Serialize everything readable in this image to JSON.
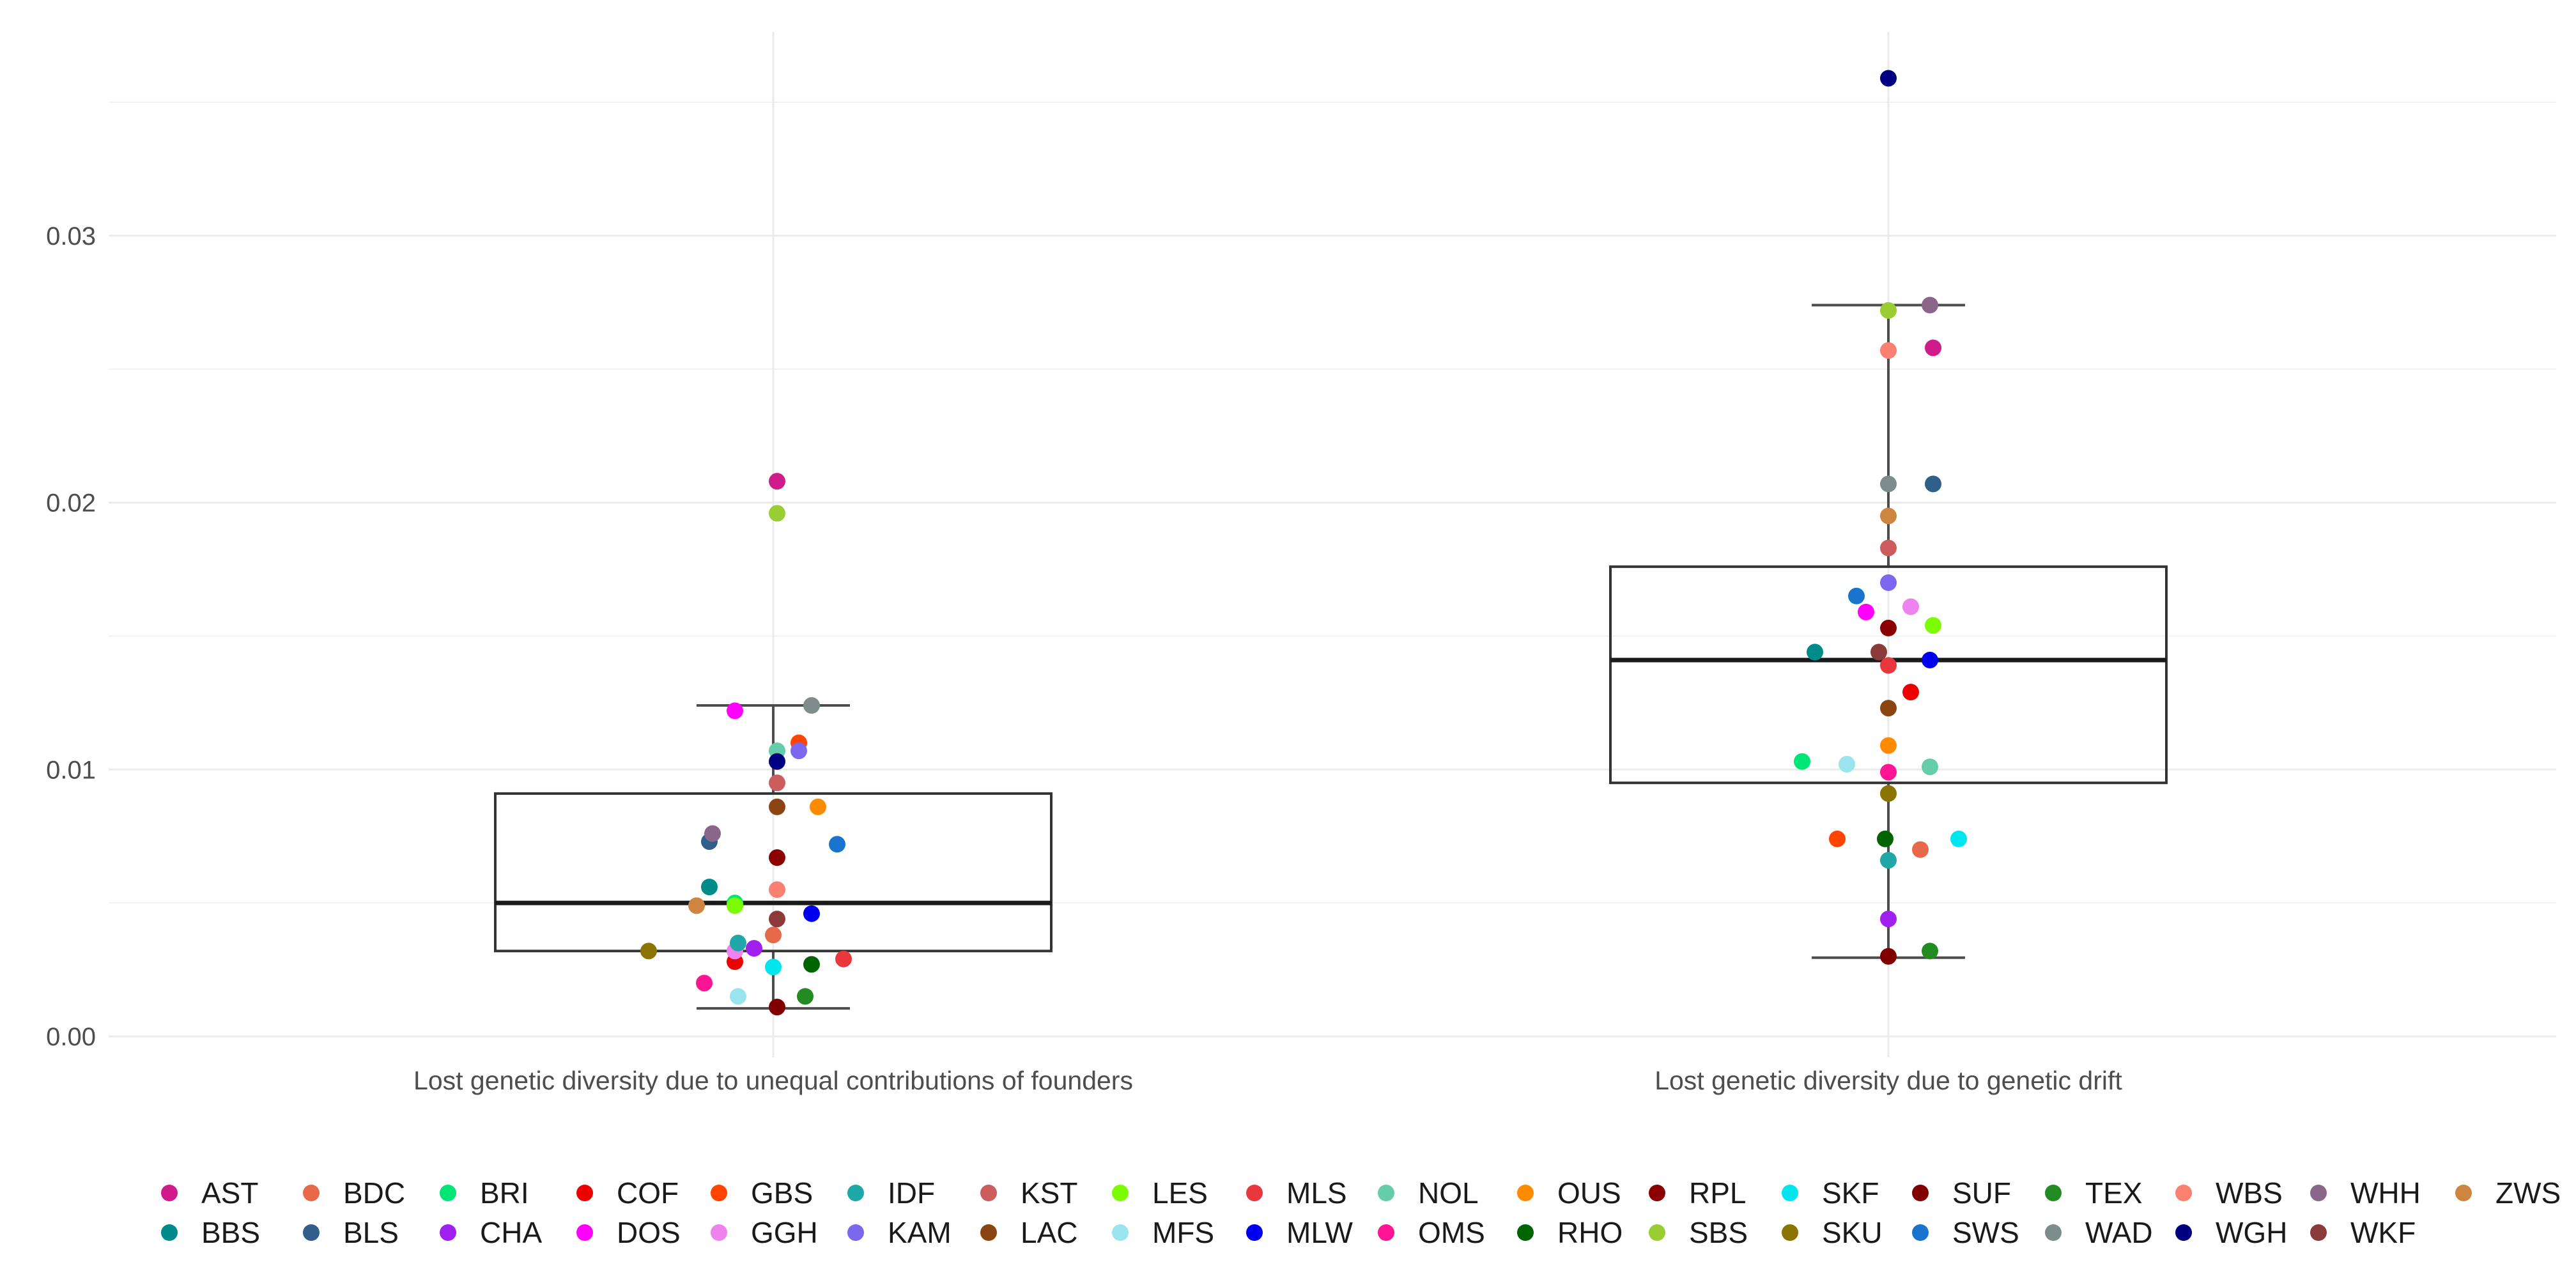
{
  "chart_data": {
    "type": "scatter",
    "subtype": "box-plot-with-jittered-points",
    "title": "",
    "xlabel": "",
    "ylabel": "",
    "ylim": [
      -0.001,
      0.037
    ],
    "y_ticks": [
      "0.00",
      "0.01",
      "0.02",
      "0.03"
    ],
    "y_tick_values": [
      0,
      0.01,
      0.02,
      0.03
    ],
    "grid": true,
    "legend_position": "bottom",
    "categories": [
      "Lost genetic diversity due to unequal contributions of founders",
      "Lost genetic diversity due to genetic drift"
    ],
    "boxes": [
      {
        "category": "Lost genetic diversity due to unequal contributions of founders",
        "whisker_low": 0.00105,
        "q1": 0.0032,
        "median": 0.005,
        "q3": 0.0091,
        "whisker_high": 0.0124
      },
      {
        "category": "Lost genetic diversity due to genetic drift",
        "whisker_low": 0.00295,
        "q1": 0.0095,
        "median": 0.0141,
        "q3": 0.0176,
        "whisker_high": 0.0274
      }
    ],
    "series": [
      {
        "name": "AST",
        "color": "#D01C8B",
        "values": [
          0.0208,
          0.0258
        ]
      },
      {
        "name": "BBS",
        "color": "#008B8B",
        "values": [
          0.0056,
          0.0144
        ]
      },
      {
        "name": "BDC",
        "color": "#E8684A",
        "values": [
          0.0038,
          0.007
        ]
      },
      {
        "name": "BLS",
        "color": "#2F5F8A",
        "values": [
          0.0073,
          0.0207
        ]
      },
      {
        "name": "BRI",
        "color": "#00E676",
        "values": [
          0.005,
          0.0103
        ]
      },
      {
        "name": "CHA",
        "color": "#A020F0",
        "values": [
          0.0033,
          0.0044
        ]
      },
      {
        "name": "COF",
        "color": "#EE0000",
        "values": [
          0.0028,
          0.0129
        ]
      },
      {
        "name": "DOS",
        "color": "#FF00FF",
        "values": [
          0.0122,
          0.0159
        ]
      },
      {
        "name": "GBS",
        "color": "#FF4500",
        "values": [
          0.011,
          0.0074
        ]
      },
      {
        "name": "GGH",
        "color": "#EE82EE",
        "values": [
          0.0032,
          0.0161
        ]
      },
      {
        "name": "IDF",
        "color": "#20A8A8",
        "values": [
          0.0035,
          0.0066
        ]
      },
      {
        "name": "KAM",
        "color": "#7B68EE",
        "values": [
          0.0107,
          0.017
        ]
      },
      {
        "name": "KST",
        "color": "#CD5C5C",
        "values": [
          0.0095,
          0.0183
        ]
      },
      {
        "name": "LAC",
        "color": "#8B4513",
        "values": [
          0.0086,
          0.0123
        ]
      },
      {
        "name": "LES",
        "color": "#7CFC00",
        "values": [
          0.0049,
          0.0154
        ]
      },
      {
        "name": "MFS",
        "color": "#9AE4EE",
        "values": [
          0.0015,
          0.0102
        ]
      },
      {
        "name": "MLS",
        "color": "#E8383D",
        "values": [
          0.0029,
          0.0139
        ]
      },
      {
        "name": "MLW",
        "color": "#0000EE",
        "values": [
          0.0046,
          0.0141
        ]
      },
      {
        "name": "NOL",
        "color": "#66CDAA",
        "values": [
          0.0107,
          0.0101
        ]
      },
      {
        "name": "OMS",
        "color": "#FF1493",
        "values": [
          0.002,
          0.0099
        ]
      },
      {
        "name": "OUS",
        "color": "#FF8C00",
        "values": [
          0.0086,
          0.0109
        ]
      },
      {
        "name": "RHO",
        "color": "#006400",
        "values": [
          0.0027,
          0.0074
        ]
      },
      {
        "name": "RPL",
        "color": "#8B0000",
        "values": [
          0.0067,
          0.0153
        ]
      },
      {
        "name": "SBS",
        "color": "#9ACD32",
        "values": [
          0.0196,
          0.0272
        ]
      },
      {
        "name": "SKF",
        "color": "#00E5EE",
        "values": [
          0.0026,
          0.0074
        ]
      },
      {
        "name": "SKU",
        "color": "#8B7500",
        "values": [
          0.0032,
          0.0091
        ]
      },
      {
        "name": "SUF",
        "color": "#800000",
        "values": [
          0.0011,
          0.003
        ]
      },
      {
        "name": "SWS",
        "color": "#1874CD",
        "values": [
          0.0072,
          0.0165
        ]
      },
      {
        "name": "TEX",
        "color": "#228B22",
        "values": [
          0.0015,
          0.0032
        ]
      },
      {
        "name": "WAD",
        "color": "#7F8C8D",
        "values": [
          0.0124,
          0.0207
        ]
      },
      {
        "name": "WBS",
        "color": "#FA8072",
        "values": [
          0.0055,
          0.0257
        ]
      },
      {
        "name": "WGH",
        "color": "#000080",
        "values": [
          0.0103,
          0.0359
        ]
      },
      {
        "name": "WHH",
        "color": "#8B668B",
        "values": [
          0.0076,
          0.0274
        ]
      },
      {
        "name": "WKF",
        "color": "#8B3A3A",
        "values": [
          0.0044,
          0.0144
        ]
      },
      {
        "name": "ZWS",
        "color": "#CD853F",
        "values": [
          0.0049,
          0.0195
        ]
      }
    ]
  }
}
